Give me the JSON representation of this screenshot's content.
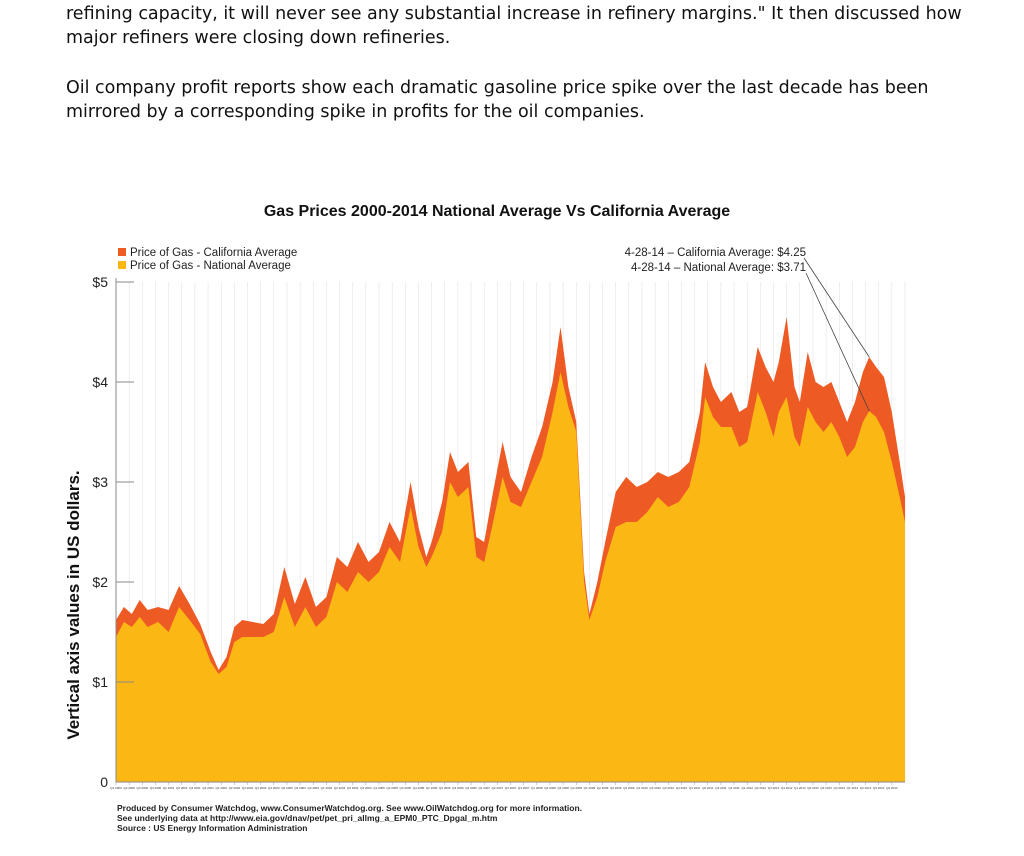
{
  "document": {
    "paragraph_1_line_1": "refining capacity, it will never see any substantial increase in refinery margins.\" It then discussed how",
    "paragraph_1_line_2": "major refiners were closing down refineries.",
    "paragraph_2_line_1": "Oil company profit reports show each dramatic gasoline price spike over the last decade has been",
    "paragraph_2_line_2": "mirrored by a corresponding spike in profits for the oil companies."
  },
  "colors": {
    "california": "#ee5a24",
    "national": "#fbb713",
    "axis": "#888888",
    "gridline": "#dddddd"
  },
  "chart_data": {
    "type": "area",
    "title": "Gas Prices 2000-2014 National Average Vs California Average",
    "ylabel": "Vertical axis values in US dollars.",
    "xlabel": "",
    "ylim": [
      0,
      5
    ],
    "yticks": [
      {
        "value": 0,
        "label": "0"
      },
      {
        "value": 1,
        "label": "$1"
      },
      {
        "value": 2,
        "label": "$2"
      },
      {
        "value": 3,
        "label": "$3"
      },
      {
        "value": 4,
        "label": "$4"
      },
      {
        "value": 5,
        "label": "$5"
      }
    ],
    "grid": true,
    "legend_position": "top-left",
    "legend": [
      {
        "label": "Price of Gas - California Average",
        "color": "#ee5a24"
      },
      {
        "label": "Price of Gas - National Average",
        "color": "#fbb713"
      }
    ],
    "annotations": [
      {
        "text": "4-28-14 – California Average: $4.25",
        "x": 2014.32,
        "y": 4.25
      },
      {
        "text": "4-28-14 – National Average: $3.71",
        "x": 2014.32,
        "y": 3.71
      }
    ],
    "credits": [
      "Produced by Consumer Watchdog, www.ConsumerWatchdog.org.  See www.OilWatchdog.org for more information.",
      "See underlying data at http://www.eia.gov/dnav/pet/pet_pri_allmg_a_EPM0_PTC_Dpgal_m.htm",
      "Source : US Energy Information Administration"
    ],
    "xlim": [
      2000.0,
      2014.4
    ],
    "x_tick_years": [
      2000,
      2001,
      2002,
      2003,
      2004,
      2005,
      2006,
      2007,
      2008,
      2009,
      2010,
      2011,
      2012,
      2013,
      2014
    ],
    "series": [
      {
        "name": "Price of Gas - California Average",
        "points": [
          [
            2000.0,
            1.62
          ],
          [
            2000.15,
            1.75
          ],
          [
            2000.3,
            1.68
          ],
          [
            2000.45,
            1.82
          ],
          [
            2000.6,
            1.72
          ],
          [
            2000.8,
            1.75
          ],
          [
            2001.0,
            1.72
          ],
          [
            2001.2,
            1.96
          ],
          [
            2001.4,
            1.78
          ],
          [
            2001.6,
            1.58
          ],
          [
            2001.8,
            1.3
          ],
          [
            2001.95,
            1.12
          ],
          [
            2002.1,
            1.25
          ],
          [
            2002.25,
            1.55
          ],
          [
            2002.4,
            1.62
          ],
          [
            2002.6,
            1.6
          ],
          [
            2002.8,
            1.58
          ],
          [
            2003.0,
            1.68
          ],
          [
            2003.2,
            2.15
          ],
          [
            2003.4,
            1.78
          ],
          [
            2003.6,
            2.05
          ],
          [
            2003.8,
            1.75
          ],
          [
            2004.0,
            1.85
          ],
          [
            2004.2,
            2.25
          ],
          [
            2004.4,
            2.15
          ],
          [
            2004.6,
            2.4
          ],
          [
            2004.8,
            2.2
          ],
          [
            2005.0,
            2.3
          ],
          [
            2005.2,
            2.6
          ],
          [
            2005.4,
            2.4
          ],
          [
            2005.6,
            3.0
          ],
          [
            2005.75,
            2.55
          ],
          [
            2005.9,
            2.25
          ],
          [
            2006.0,
            2.4
          ],
          [
            2006.2,
            2.8
          ],
          [
            2006.35,
            3.3
          ],
          [
            2006.5,
            3.1
          ],
          [
            2006.7,
            3.2
          ],
          [
            2006.85,
            2.45
          ],
          [
            2007.0,
            2.4
          ],
          [
            2007.15,
            2.85
          ],
          [
            2007.35,
            3.4
          ],
          [
            2007.5,
            3.05
          ],
          [
            2007.7,
            2.9
          ],
          [
            2007.9,
            3.25
          ],
          [
            2008.1,
            3.55
          ],
          [
            2008.3,
            4.0
          ],
          [
            2008.45,
            4.55
          ],
          [
            2008.6,
            3.95
          ],
          [
            2008.75,
            3.6
          ],
          [
            2008.9,
            2.1
          ],
          [
            2009.0,
            1.68
          ],
          [
            2009.15,
            2.0
          ],
          [
            2009.3,
            2.4
          ],
          [
            2009.5,
            2.9
          ],
          [
            2009.7,
            3.05
          ],
          [
            2009.9,
            2.95
          ],
          [
            2010.1,
            3.0
          ],
          [
            2010.3,
            3.1
          ],
          [
            2010.5,
            3.05
          ],
          [
            2010.7,
            3.1
          ],
          [
            2010.9,
            3.2
          ],
          [
            2011.1,
            3.7
          ],
          [
            2011.2,
            4.2
          ],
          [
            2011.35,
            3.95
          ],
          [
            2011.5,
            3.8
          ],
          [
            2011.7,
            3.9
          ],
          [
            2011.85,
            3.7
          ],
          [
            2012.0,
            3.75
          ],
          [
            2012.2,
            4.35
          ],
          [
            2012.35,
            4.15
          ],
          [
            2012.5,
            4.0
          ],
          [
            2012.6,
            4.2
          ],
          [
            2012.75,
            4.65
          ],
          [
            2012.9,
            3.95
          ],
          [
            2013.0,
            3.8
          ],
          [
            2013.15,
            4.3
          ],
          [
            2013.3,
            4.0
          ],
          [
            2013.45,
            3.95
          ],
          [
            2013.6,
            4.0
          ],
          [
            2013.75,
            3.8
          ],
          [
            2013.9,
            3.6
          ],
          [
            2014.05,
            3.8
          ],
          [
            2014.2,
            4.1
          ],
          [
            2014.32,
            4.25
          ],
          [
            2014.45,
            4.15
          ],
          [
            2014.6,
            4.05
          ],
          [
            2014.75,
            3.7
          ],
          [
            2014.9,
            3.2
          ],
          [
            2015.0,
            2.85
          ]
        ]
      },
      {
        "name": "Price of Gas - National Average",
        "points": [
          [
            2000.0,
            1.45
          ],
          [
            2000.15,
            1.6
          ],
          [
            2000.3,
            1.55
          ],
          [
            2000.45,
            1.65
          ],
          [
            2000.6,
            1.55
          ],
          [
            2000.8,
            1.6
          ],
          [
            2001.0,
            1.5
          ],
          [
            2001.2,
            1.75
          ],
          [
            2001.4,
            1.62
          ],
          [
            2001.6,
            1.48
          ],
          [
            2001.8,
            1.2
          ],
          [
            2001.95,
            1.08
          ],
          [
            2002.1,
            1.15
          ],
          [
            2002.25,
            1.4
          ],
          [
            2002.4,
            1.45
          ],
          [
            2002.6,
            1.45
          ],
          [
            2002.8,
            1.45
          ],
          [
            2003.0,
            1.5
          ],
          [
            2003.2,
            1.85
          ],
          [
            2003.4,
            1.55
          ],
          [
            2003.6,
            1.75
          ],
          [
            2003.8,
            1.55
          ],
          [
            2004.0,
            1.65
          ],
          [
            2004.2,
            2.0
          ],
          [
            2004.4,
            1.9
          ],
          [
            2004.6,
            2.1
          ],
          [
            2004.8,
            2.0
          ],
          [
            2005.0,
            2.1
          ],
          [
            2005.2,
            2.35
          ],
          [
            2005.4,
            2.2
          ],
          [
            2005.6,
            2.75
          ],
          [
            2005.75,
            2.35
          ],
          [
            2005.9,
            2.15
          ],
          [
            2006.0,
            2.25
          ],
          [
            2006.2,
            2.5
          ],
          [
            2006.35,
            3.0
          ],
          [
            2006.5,
            2.85
          ],
          [
            2006.7,
            2.95
          ],
          [
            2006.85,
            2.25
          ],
          [
            2007.0,
            2.2
          ],
          [
            2007.15,
            2.55
          ],
          [
            2007.35,
            3.05
          ],
          [
            2007.5,
            2.8
          ],
          [
            2007.7,
            2.75
          ],
          [
            2007.9,
            3.0
          ],
          [
            2008.1,
            3.25
          ],
          [
            2008.3,
            3.7
          ],
          [
            2008.45,
            4.1
          ],
          [
            2008.6,
            3.75
          ],
          [
            2008.75,
            3.5
          ],
          [
            2008.9,
            2.0
          ],
          [
            2009.0,
            1.62
          ],
          [
            2009.15,
            1.85
          ],
          [
            2009.3,
            2.2
          ],
          [
            2009.5,
            2.55
          ],
          [
            2009.7,
            2.6
          ],
          [
            2009.9,
            2.6
          ],
          [
            2010.1,
            2.7
          ],
          [
            2010.3,
            2.85
          ],
          [
            2010.5,
            2.75
          ],
          [
            2010.7,
            2.8
          ],
          [
            2010.9,
            2.95
          ],
          [
            2011.1,
            3.4
          ],
          [
            2011.2,
            3.85
          ],
          [
            2011.35,
            3.65
          ],
          [
            2011.5,
            3.55
          ],
          [
            2011.7,
            3.55
          ],
          [
            2011.85,
            3.35
          ],
          [
            2012.0,
            3.4
          ],
          [
            2012.2,
            3.9
          ],
          [
            2012.35,
            3.7
          ],
          [
            2012.5,
            3.45
          ],
          [
            2012.6,
            3.7
          ],
          [
            2012.75,
            3.85
          ],
          [
            2012.9,
            3.45
          ],
          [
            2013.0,
            3.35
          ],
          [
            2013.15,
            3.75
          ],
          [
            2013.3,
            3.6
          ],
          [
            2013.45,
            3.5
          ],
          [
            2013.6,
            3.6
          ],
          [
            2013.75,
            3.45
          ],
          [
            2013.9,
            3.25
          ],
          [
            2014.05,
            3.35
          ],
          [
            2014.2,
            3.6
          ],
          [
            2014.32,
            3.71
          ],
          [
            2014.45,
            3.65
          ],
          [
            2014.6,
            3.5
          ],
          [
            2014.75,
            3.2
          ],
          [
            2014.9,
            2.85
          ],
          [
            2015.0,
            2.6
          ]
        ]
      }
    ]
  }
}
